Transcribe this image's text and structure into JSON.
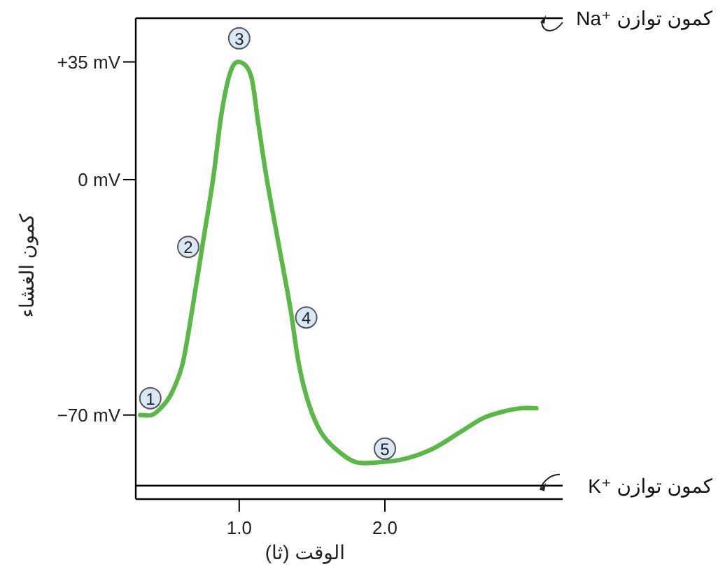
{
  "chart_data": {
    "type": "line",
    "xlabel": "الوقت (ثا)",
    "ylabel": "كمون الغشاء",
    "xlim": [
      0.29,
      3.22
    ],
    "ylim": [
      -95,
      48
    ],
    "xticks": [
      {
        "value": 1,
        "label": "1.0"
      },
      {
        "value": 2,
        "label": "2.0"
      }
    ],
    "yticks": [
      {
        "value": 35,
        "label": "+35 mV"
      },
      {
        "value": 0,
        "label": "0 mV"
      },
      {
        "value": -70,
        "label": "−70 mV"
      }
    ],
    "series": [
      {
        "color": "#5ab946",
        "x": [
          0.32,
          0.4,
          0.46,
          0.53,
          0.61,
          0.68,
          0.75,
          0.82,
          0.88,
          0.94,
          1.0,
          1.08,
          1.13,
          1.19,
          1.27,
          1.35,
          1.41,
          1.48,
          1.56,
          1.66,
          1.8,
          1.97,
          2.14,
          2.33,
          2.52,
          2.67,
          2.81,
          2.93,
          3.04
        ],
        "values": [
          -70,
          -70,
          -68,
          -64,
          -55,
          -38,
          -19,
          0,
          20,
          32,
          35,
          31,
          17,
          0,
          -19,
          -38,
          -55,
          -67,
          -75,
          -80,
          -84,
          -84,
          -83,
          -80,
          -75,
          -71,
          -69,
          -68,
          -68
        ]
      }
    ],
    "ref_lines": [
      {
        "axis": "y",
        "value": 48,
        "label": "كمون توازن Na⁺",
        "color": "#000000"
      },
      {
        "axis": "y",
        "value": -91,
        "label": "كمون توازن K⁺",
        "color": "#000000"
      }
    ],
    "annotations": [
      {
        "text": "1",
        "x": 0.39,
        "y": -65
      },
      {
        "text": "2",
        "x": 0.65,
        "y": -20
      },
      {
        "text": "3",
        "x": 1.0,
        "y": 42
      },
      {
        "text": "4",
        "x": 1.46,
        "y": -41
      },
      {
        "text": "5",
        "x": 2.0,
        "y": -80
      }
    ]
  }
}
